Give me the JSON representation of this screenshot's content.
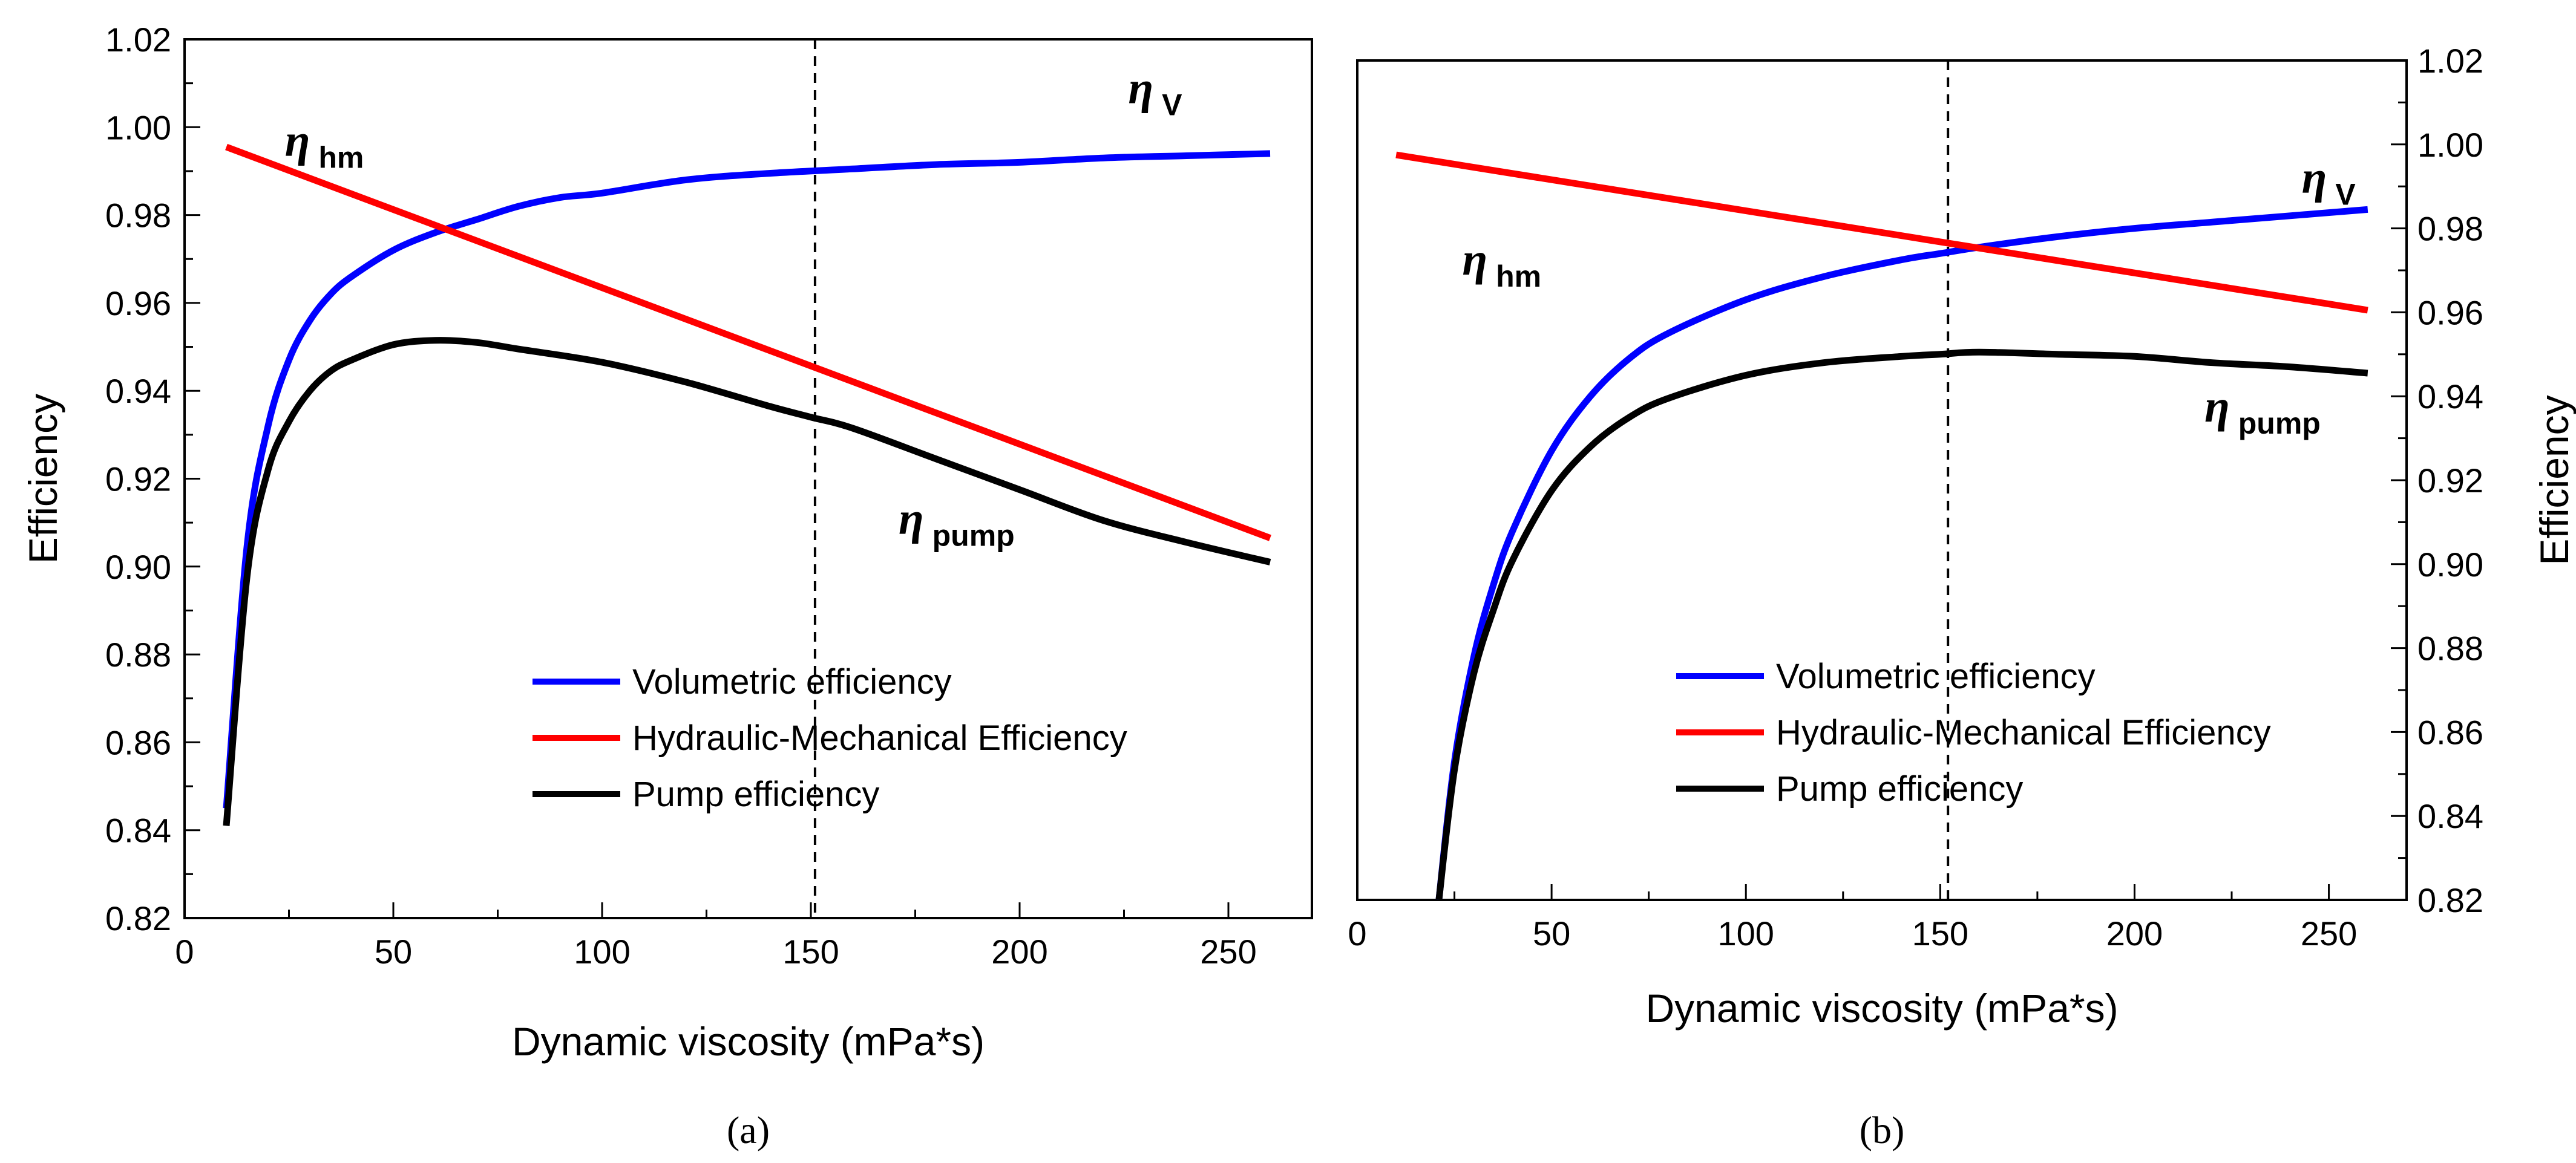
{
  "chart_data": [
    {
      "panel_label": "(a)",
      "type": "line",
      "xlabel": "Dynamic viscosity (mPa*s)",
      "ylabel": "Efficiency",
      "xlim": [
        0,
        270
      ],
      "ylim": [
        0.82,
        1.02
      ],
      "xticks": [
        0,
        50,
        100,
        150,
        200,
        250
      ],
      "yticks": [
        0.82,
        0.84,
        0.86,
        0.88,
        0.9,
        0.92,
        0.94,
        0.96,
        0.98,
        1.0,
        1.02
      ],
      "ytick_labels": [
        "0.82",
        "0.84",
        "0.86",
        "0.88",
        "0.90",
        "0.92",
        "0.94",
        "0.96",
        "0.98",
        "1.00",
        "1.02"
      ],
      "y_axis_side": "left",
      "grid": false,
      "legend_position": "center-bottom",
      "vertical_reference_line": 151,
      "series": [
        {
          "name": "Volumetric efficiency",
          "color": "#0000ff",
          "x": [
            10,
            15,
            20,
            25,
            30,
            35,
            40,
            50,
            60,
            70,
            80,
            90,
            100,
            120,
            140,
            160,
            180,
            200,
            220,
            240,
            260
          ],
          "y": [
            0.845,
            0.905,
            0.932,
            0.947,
            0.956,
            0.962,
            0.966,
            0.972,
            0.976,
            0.979,
            0.982,
            0.984,
            0.985,
            0.988,
            0.9895,
            0.9905,
            0.9915,
            0.992,
            0.993,
            0.9935,
            0.994
          ]
        },
        {
          "name": "Hydraulic-Mechanical Efficiency",
          "color": "#ff0000",
          "x": [
            10,
            260
          ],
          "y": [
            0.9955,
            0.9065
          ]
        },
        {
          "name": "Pump efficiency",
          "color": "#000000",
          "x": [
            10,
            15,
            20,
            25,
            30,
            35,
            40,
            50,
            60,
            70,
            80,
            100,
            120,
            140,
            150,
            160,
            180,
            200,
            220,
            240,
            260
          ],
          "y": [
            0.841,
            0.898,
            0.922,
            0.933,
            0.94,
            0.9445,
            0.947,
            0.9505,
            0.9515,
            0.951,
            0.9495,
            0.9465,
            0.942,
            0.9365,
            0.934,
            0.9315,
            0.9245,
            0.9175,
            0.9105,
            0.9055,
            0.901
          ]
        }
      ],
      "annotations": [
        {
          "symbol": "η",
          "subscript": "hm",
          "x": 24,
          "y": 0.9935
        },
        {
          "symbol": "η",
          "subscript": "V",
          "x": 226,
          "y": 1.0055
        },
        {
          "symbol": "η",
          "subscript": "pump",
          "x": 171,
          "y": 0.9075
        }
      ]
    },
    {
      "panel_label": "(b)",
      "type": "line",
      "xlabel": "Dynamic viscosity (mPa*s)",
      "ylabel": "Efficiency",
      "xlim": [
        0,
        270
      ],
      "ylim": [
        0.82,
        1.02
      ],
      "xticks": [
        0,
        50,
        100,
        150,
        200,
        250
      ],
      "yticks": [
        0.82,
        0.84,
        0.86,
        0.88,
        0.9,
        0.92,
        0.94,
        0.96,
        0.98,
        1.0,
        1.02
      ],
      "ytick_labels": [
        "0.82",
        "0.84",
        "0.86",
        "0.88",
        "0.90",
        "0.92",
        "0.94",
        "0.96",
        "0.98",
        "1.00",
        "1.02"
      ],
      "y_axis_side": "right",
      "grid": false,
      "legend_position": "center-bottom",
      "vertical_reference_line": 152,
      "series": [
        {
          "name": "Volumetric efficiency",
          "color": "#0000ff",
          "x": [
            21,
            25,
            30,
            35,
            40,
            50,
            60,
            70,
            80,
            100,
            120,
            140,
            150,
            160,
            180,
            200,
            220,
            240,
            260
          ],
          "y": [
            0.82,
            0.853,
            0.878,
            0.895,
            0.908,
            0.927,
            0.94,
            0.949,
            0.955,
            0.963,
            0.9685,
            0.9725,
            0.974,
            0.9755,
            0.978,
            0.98,
            0.9815,
            0.983,
            0.9845
          ]
        },
        {
          "name": "Hydraulic-Mechanical Efficiency",
          "color": "#ff0000",
          "x": [
            10,
            260
          ],
          "y": [
            0.9975,
            0.9605
          ]
        },
        {
          "name": "Pump efficiency",
          "color": "#000000",
          "x": [
            21,
            25,
            30,
            35,
            40,
            50,
            60,
            70,
            80,
            100,
            120,
            140,
            150,
            160,
            180,
            200,
            220,
            240,
            260
          ],
          "y": [
            0.82,
            0.851,
            0.874,
            0.889,
            0.901,
            0.9175,
            0.928,
            0.935,
            0.9395,
            0.945,
            0.948,
            0.9495,
            0.95,
            0.9505,
            0.95,
            0.9495,
            0.948,
            0.947,
            0.9455
          ]
        }
      ],
      "annotations": [
        {
          "symbol": "η",
          "subscript": "hm",
          "x": 27,
          "y": 0.969
        },
        {
          "symbol": "η",
          "subscript": "V",
          "x": 243,
          "y": 0.9885
        },
        {
          "symbol": "η",
          "subscript": "pump",
          "x": 218,
          "y": 0.934
        }
      ]
    }
  ]
}
